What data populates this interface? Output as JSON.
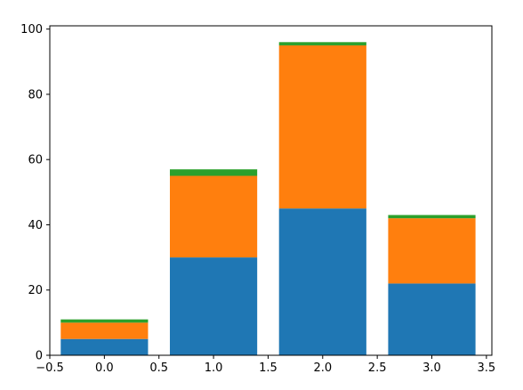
{
  "chart_data": {
    "type": "bar",
    "stacked": true,
    "title": "",
    "xlabel": "",
    "ylabel": "",
    "x": [
      0,
      1,
      2,
      3
    ],
    "bar_width": 0.8,
    "xlim": [
      -0.5,
      3.55
    ],
    "ylim": [
      0,
      101
    ],
    "xticks": [
      "−0.5",
      "0.0",
      "0.5",
      "1.0",
      "1.5",
      "2.0",
      "2.5",
      "3.0",
      "3.5"
    ],
    "xtick_values": [
      -0.5,
      0.0,
      0.5,
      1.0,
      1.5,
      2.0,
      2.5,
      3.0,
      3.5
    ],
    "yticks": [
      "0",
      "20",
      "40",
      "60",
      "80",
      "100"
    ],
    "ytick_values": [
      0,
      20,
      40,
      60,
      80,
      100
    ],
    "grid": false,
    "legend": "none",
    "series": [
      {
        "color": "#1f77b4",
        "values": [
          5,
          30,
          45,
          22
        ]
      },
      {
        "color": "#ff7f0e",
        "values": [
          5,
          25,
          50,
          20
        ]
      },
      {
        "color": "#2ca02c",
        "values": [
          1,
          2,
          1,
          1
        ]
      }
    ]
  }
}
